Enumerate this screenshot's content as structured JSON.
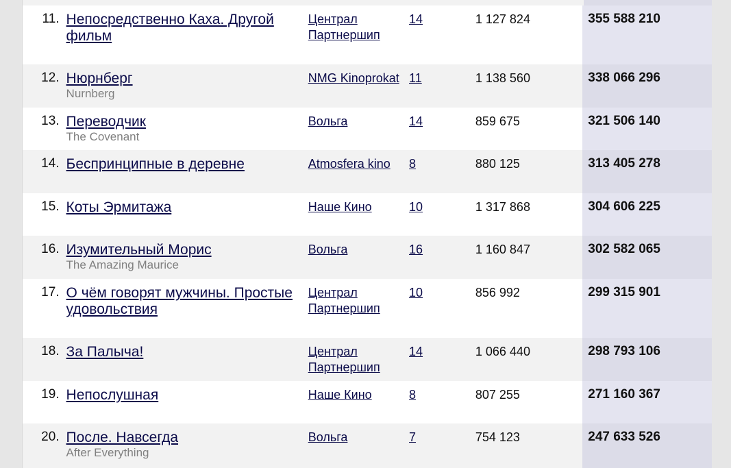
{
  "rows": [
    {
      "rank": "11.",
      "title": "Непосредственно Каха. Другой фильм",
      "original": "",
      "distributor": "Централ Партнершип",
      "screens": "14",
      "viewers": "1 127 824",
      "gross": "355 588 210"
    },
    {
      "rank": "12.",
      "title": "Нюрнберг",
      "original": "Nurnberg",
      "distributor": "NMG Kinoprokat",
      "screens": "11",
      "viewers": "1 138 560",
      "gross": "338 066 296"
    },
    {
      "rank": "13.",
      "title": "Переводчик",
      "original": "The Covenant",
      "distributor": "Вольга",
      "screens": "14",
      "viewers": "859 675",
      "gross": "321 506 140"
    },
    {
      "rank": "14.",
      "title": "Беспринципные в деревне",
      "original": "",
      "distributor": "Atmosfera kino",
      "screens": "8",
      "viewers": "880 125",
      "gross": "313 405 278"
    },
    {
      "rank": "15.",
      "title": "Коты Эрмитажа",
      "original": "",
      "distributor": "Наше Кино",
      "screens": "10",
      "viewers": "1 317 868",
      "gross": "304 606 225"
    },
    {
      "rank": "16.",
      "title": "Изумительный Морис",
      "original": "The Amazing Maurice",
      "distributor": "Вольга",
      "screens": "16",
      "viewers": "1 160 847",
      "gross": "302 582 065"
    },
    {
      "rank": "17.",
      "title": "О чём говорят мужчины. Простые удовольствия",
      "original": "",
      "distributor": "Централ Партнершип",
      "screens": "10",
      "viewers": "856 992",
      "gross": "299 315 901"
    },
    {
      "rank": "18.",
      "title": "За Палыча!",
      "original": "",
      "distributor": "Централ Партнершип",
      "screens": "14",
      "viewers": "1 066 440",
      "gross": "298 793 106"
    },
    {
      "rank": "19.",
      "title": "Непослушная",
      "original": "",
      "distributor": "Наше Кино",
      "screens": "8",
      "viewers": "807 255",
      "gross": "271 160 367"
    },
    {
      "rank": "20.",
      "title": "После. Навсегда",
      "original": "After Everything",
      "distributor": "Вольга",
      "screens": "7",
      "viewers": "754 123",
      "gross": "247 633 526"
    }
  ]
}
